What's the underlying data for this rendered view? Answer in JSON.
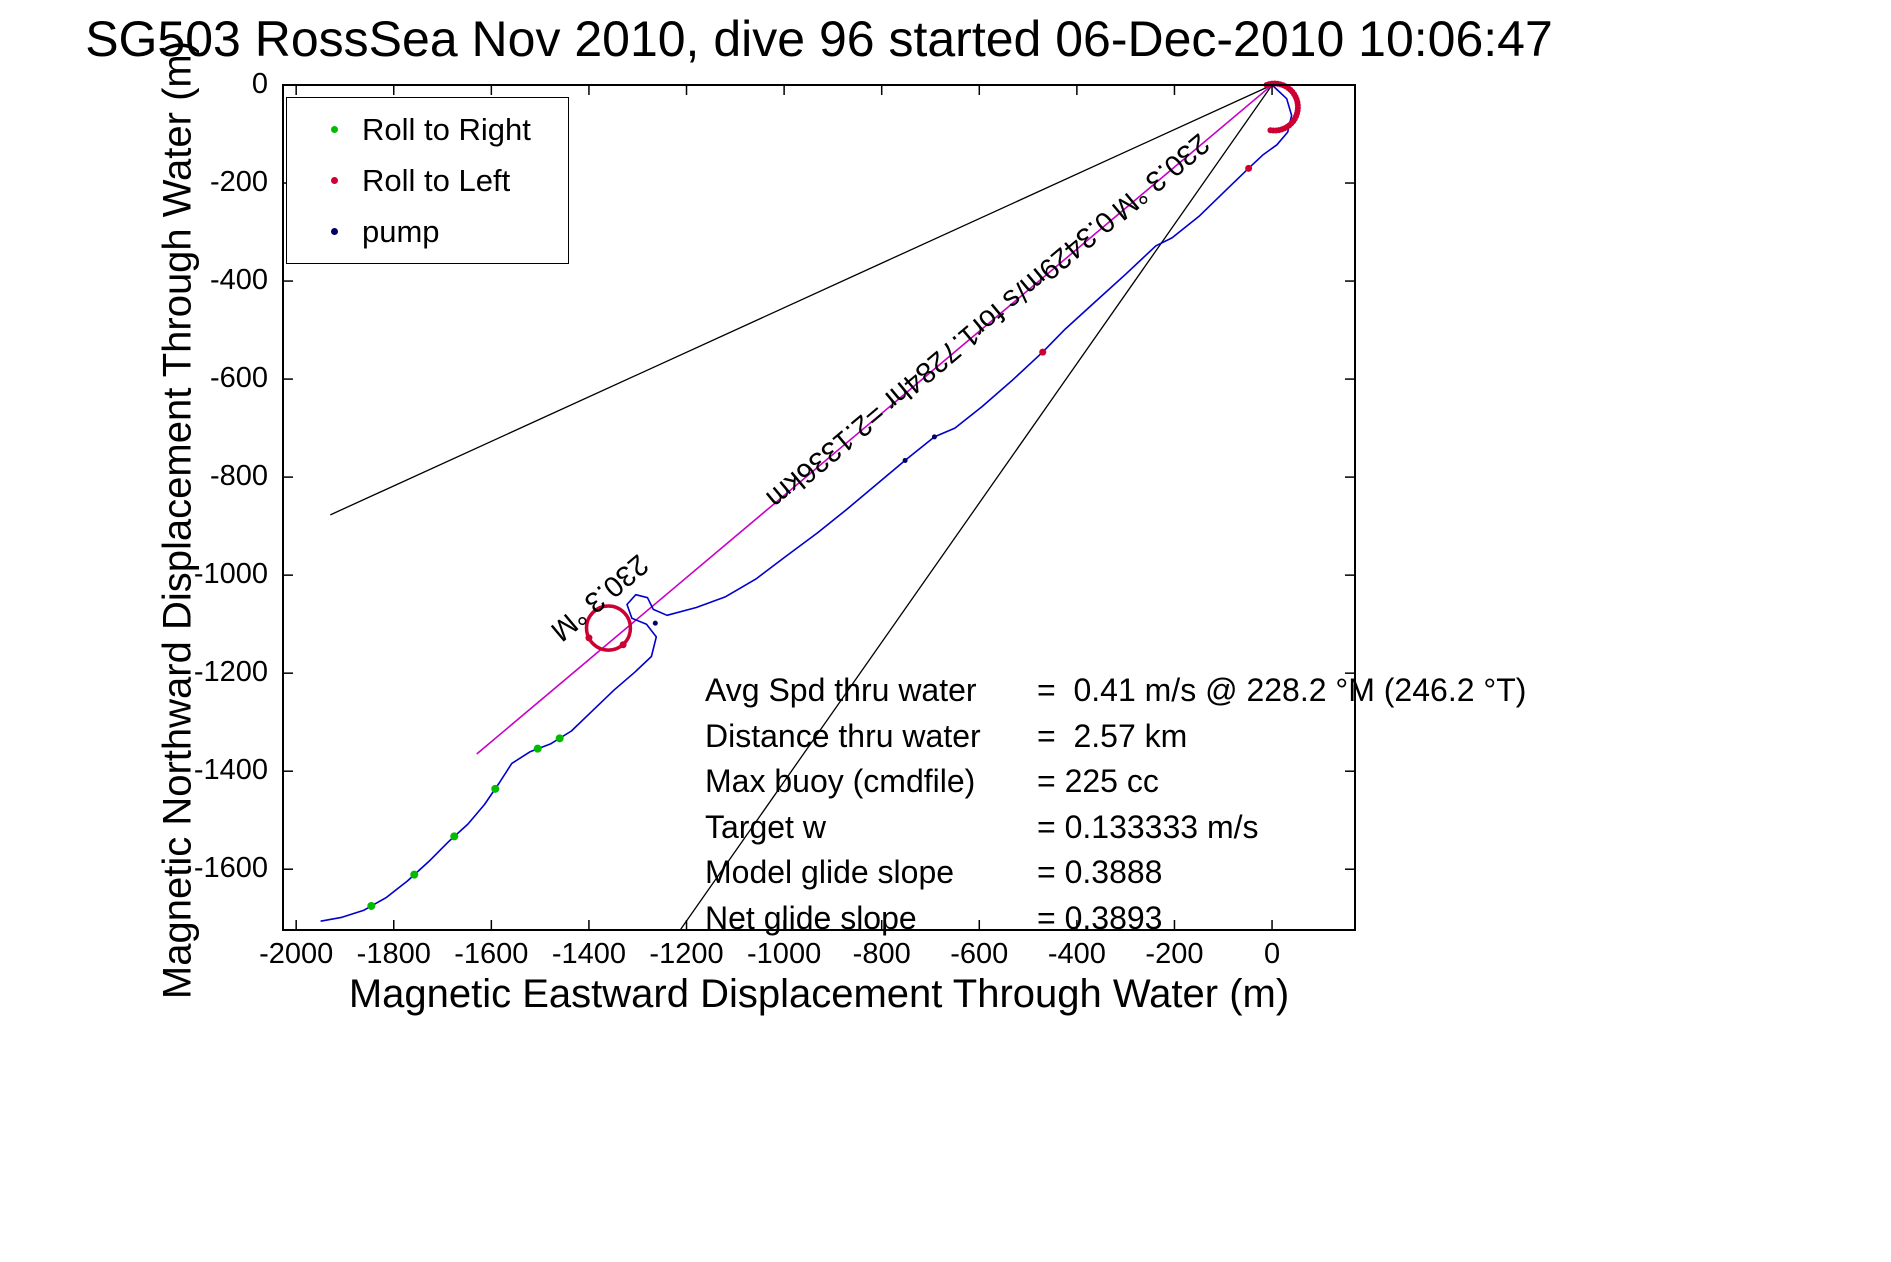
{
  "title": "SG503 RossSea Nov 2010, dive 96 started 06-Dec-2010 10:06:47",
  "chart_data": {
    "type": "line",
    "xlabel": "Magnetic Eastward Displacement Through Water (m)",
    "ylabel": "Magnetic Northward Displacement Through Water (m)",
    "xlim": [
      -2027,
      170
    ],
    "ylim": [
      -1724,
      0
    ],
    "xticks": [
      -2000,
      -1800,
      -1600,
      -1400,
      -1200,
      -1000,
      -800,
      -600,
      -400,
      -200,
      0
    ],
    "yticks": [
      0,
      -200,
      -400,
      -600,
      -800,
      -1000,
      -1200,
      -1400,
      -1600
    ],
    "colors": {
      "track": "#0000CC",
      "desired_track": "#C800C8",
      "bearing_line": "#000000",
      "roll_right": "#00BB00",
      "roll_left": "#CC0033",
      "pump": "#000066"
    },
    "track": [
      [
        0,
        0
      ],
      [
        30,
        -28
      ],
      [
        40,
        -62
      ],
      [
        32,
        -96
      ],
      [
        10,
        -122
      ],
      [
        -18,
        -142
      ],
      [
        -48,
        -170
      ],
      [
        -92,
        -212
      ],
      [
        -150,
        -268
      ],
      [
        -205,
        -312
      ],
      [
        -238,
        -328
      ],
      [
        -300,
        -386
      ],
      [
        -362,
        -442
      ],
      [
        -424,
        -498
      ],
      [
        -470,
        -545
      ],
      [
        -532,
        -602
      ],
      [
        -594,
        -656
      ],
      [
        -650,
        -700
      ],
      [
        -692,
        -718
      ],
      [
        -752,
        -766
      ],
      [
        -812,
        -816
      ],
      [
        -872,
        -866
      ],
      [
        -932,
        -914
      ],
      [
        -994,
        -960
      ],
      [
        -1058,
        -1008
      ],
      [
        -1120,
        -1044
      ],
      [
        -1180,
        -1066
      ],
      [
        -1240,
        -1082
      ],
      [
        -1268,
        -1070
      ],
      [
        -1280,
        -1046
      ],
      [
        -1304,
        -1040
      ],
      [
        -1322,
        -1060
      ],
      [
        -1312,
        -1088
      ],
      [
        -1282,
        -1100
      ],
      [
        -1262,
        -1126
      ],
      [
        -1272,
        -1166
      ],
      [
        -1306,
        -1198
      ],
      [
        -1348,
        -1234
      ],
      [
        -1392,
        -1276
      ],
      [
        -1436,
        -1318
      ],
      [
        -1478,
        -1344
      ],
      [
        -1520,
        -1360
      ],
      [
        -1558,
        -1384
      ],
      [
        -1584,
        -1424
      ],
      [
        -1614,
        -1468
      ],
      [
        -1648,
        -1508
      ],
      [
        -1688,
        -1544
      ],
      [
        -1728,
        -1584
      ],
      [
        -1772,
        -1624
      ],
      [
        -1816,
        -1658
      ],
      [
        -1862,
        -1684
      ],
      [
        -1906,
        -1698
      ],
      [
        -1950,
        -1706
      ]
    ],
    "bearing_lines": [
      [
        [
          0,
          0
        ],
        [
          -1930,
          -877
        ]
      ],
      [
        [
          0,
          0
        ],
        [
          -1213,
          -1724
        ]
      ]
    ],
    "desired_track_line": [
      [
        0,
        0
      ],
      [
        -1630,
        -1365
      ]
    ],
    "target_circle": {
      "cx": -1360,
      "cy": -1108,
      "r": 45
    },
    "start_loop": {
      "cx": 5,
      "cy": -45,
      "r": 48,
      "start_deg": 110,
      "end_deg": -100,
      "step_deg": 7
    },
    "roll_right_points": [
      [
        -1460,
        -1333
      ],
      [
        -1505,
        -1354
      ],
      [
        -1592,
        -1436
      ],
      [
        -1676,
        -1533
      ],
      [
        -1758,
        -1611
      ],
      [
        -1846,
        -1675
      ]
    ],
    "roll_left_points": [
      [
        -48,
        -170
      ],
      [
        -470,
        -545
      ],
      [
        -1400,
        -1128
      ],
      [
        -1330,
        -1142
      ]
    ],
    "pump_points": [
      [
        -692,
        -718
      ],
      [
        -752,
        -766
      ],
      [
        -1264,
        -1098
      ]
    ],
    "line_labels": [
      {
        "name": "bearing-label-upper",
        "text": "230.3 °M",
        "x": -230,
        "y": -185,
        "angle_deg": 140
      },
      {
        "name": "speed-distance-label",
        "text": "0.3429m/s for1.7284hr =2.1336km",
        "x": -680,
        "y": -560,
        "angle_deg": 140
      },
      {
        "name": "bearing-label-lower",
        "text": "230.3 °M",
        "x": -1380,
        "y": -1045,
        "angle_deg": 140
      }
    ]
  },
  "legend": {
    "items": [
      {
        "label": "Roll to Right",
        "color": "#00BB00"
      },
      {
        "label": "Roll to Left",
        "color": "#CC0033"
      },
      {
        "label": "pump",
        "color": "#000066"
      }
    ]
  },
  "annotations": {
    "rows": [
      {
        "label": "Avg Spd thru water",
        "value": "=  0.41 m/s @ 228.2 °M (246.2 °T)"
      },
      {
        "label": "Distance thru water",
        "value": "=  2.57 km"
      },
      {
        "label": "Max buoy (cmdfile)",
        "value": "= 225 cc"
      },
      {
        "label": "Target w",
        "value": "= 0.133333 m/s"
      },
      {
        "label": "Model glide slope",
        "value": "= 0.3888"
      },
      {
        "label": "Net glide slope",
        "value": "= 0.3893"
      }
    ]
  }
}
